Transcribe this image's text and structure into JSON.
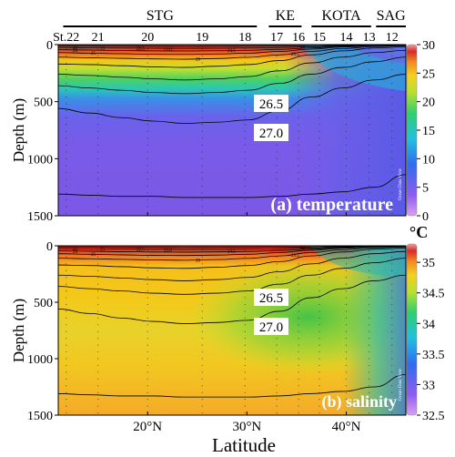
{
  "chart_data": [
    {
      "type": "heatmap",
      "panel_label": "(a) temperature",
      "colorbar_unit": "°C",
      "colorbar_ticks": [
        0,
        5,
        10,
        15,
        20,
        25,
        30
      ],
      "clim": [
        0,
        30
      ],
      "ylabel": "Depth (m)",
      "yticks": [
        0,
        500,
        1000,
        1500
      ],
      "ylim": [
        1500,
        0
      ],
      "isopycnals": [
        {
          "label": "26.5",
          "depth_at_label": 460
        },
        {
          "label": "27.0",
          "depth_at_label": 690
        }
      ],
      "contour_labels_upper": [
        "22",
        "22.5",
        "23.0",
        "23",
        "24",
        "24.5",
        "25",
        "25.5",
        "26",
        "27.5"
      ],
      "watermark": "Ocean Data View"
    },
    {
      "type": "heatmap",
      "panel_label": "(b) salinity",
      "colorbar_unit": "",
      "colorbar_ticks": [
        32.5,
        33,
        33.5,
        34,
        34.5,
        35
      ],
      "clim": [
        32.5,
        35.3
      ],
      "ylabel": "Depth (m)",
      "yticks": [
        0,
        500,
        1000,
        1500
      ],
      "ylim": [
        1500,
        0
      ],
      "isopycnals": [
        {
          "label": "26.5",
          "depth_at_label": 460
        },
        {
          "label": "27.0",
          "depth_at_label": 690
        }
      ],
      "contour_labels_upper": [
        "22",
        "22.5",
        "23.0",
        "23",
        "24",
        "24.5",
        "25",
        "25.5",
        "26",
        "27.5"
      ],
      "watermark": "Ocean Data View"
    }
  ],
  "xaxis": {
    "label": "Latitude",
    "ticks": [
      "20°N",
      "30°N",
      "40°N"
    ],
    "tick_values": [
      20,
      30,
      40
    ],
    "xlim": [
      11,
      46
    ]
  },
  "regions": [
    {
      "name": "STG",
      "from": 11.5,
      "to": 31
    },
    {
      "name": "KE",
      "from": 32.2,
      "to": 35.5
    },
    {
      "name": "KOTA",
      "from": 36.5,
      "to": 42.5
    },
    {
      "name": "SAG",
      "from": 43,
      "to": 46
    }
  ],
  "stations": [
    {
      "label": "St.22",
      "lat": 11.8
    },
    {
      "label": "21",
      "lat": 15.0
    },
    {
      "label": "20",
      "lat": 20.0
    },
    {
      "label": "19",
      "lat": 25.5
    },
    {
      "label": "18",
      "lat": 29.8
    },
    {
      "label": "17",
      "lat": 33.0
    },
    {
      "label": "16",
      "lat": 35.2
    },
    {
      "label": "15",
      "lat": 37.3
    },
    {
      "label": "14",
      "lat": 40.0
    },
    {
      "label": "13",
      "lat": 42.3
    },
    {
      "label": "12",
      "lat": 44.6
    }
  ]
}
